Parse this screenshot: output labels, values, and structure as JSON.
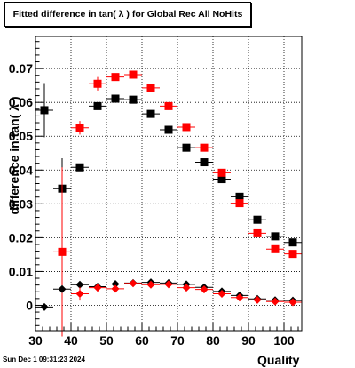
{
  "title": "Fitted difference in tan( λ ) for Global Rec All NoHits",
  "footer": "Sun Dec  1 09:31:23 2024",
  "chart_data": {
    "type": "scatter",
    "title": "Fitted difference in tan( λ ) for Global Rec All NoHits",
    "xlabel": "Quality",
    "ylabel": "difference in tan( λ )",
    "xlim": [
      30,
      105
    ],
    "ylim": [
      -0.0075,
      0.0795
    ],
    "grid": true,
    "x_ticks": [
      30,
      40,
      50,
      60,
      70,
      80,
      90,
      100
    ],
    "y_ticks": [
      0,
      0.01,
      0.02,
      0.03,
      0.04,
      0.05,
      0.06,
      0.07
    ],
    "x_tick_labels": [
      "30",
      "40",
      "50",
      "60",
      "70",
      "80",
      "90",
      "100"
    ],
    "y_tick_labels": [
      "0",
      "0.01",
      "0.02",
      "0.03",
      "0.04",
      "0.05",
      "0.06",
      "0.07"
    ],
    "series": [
      {
        "color": "#000000",
        "marker": "square",
        "points": [
          {
            "x": 32.5,
            "y": 0.0577,
            "yerr": 0.008
          },
          {
            "x": 37.5,
            "y": 0.0345,
            "yerr": 0.009
          },
          {
            "x": 42.5,
            "y": 0.0408,
            "yerr": 0.001
          },
          {
            "x": 47.5,
            "y": 0.0589,
            "yerr": 0.001
          },
          {
            "x": 52.5,
            "y": 0.0611,
            "yerr": 0.001
          },
          {
            "x": 57.5,
            "y": 0.0608,
            "yerr": 0.001
          },
          {
            "x": 62.5,
            "y": 0.0566,
            "yerr": 0.001
          },
          {
            "x": 67.5,
            "y": 0.0519,
            "yerr": 0.001
          },
          {
            "x": 72.5,
            "y": 0.0466,
            "yerr": 0.001
          },
          {
            "x": 77.5,
            "y": 0.0423,
            "yerr": 0.001
          },
          {
            "x": 82.5,
            "y": 0.0373,
            "yerr": 0.001
          },
          {
            "x": 87.5,
            "y": 0.0321,
            "yerr": 0.001
          },
          {
            "x": 92.5,
            "y": 0.0253,
            "yerr": 0.001
          },
          {
            "x": 97.5,
            "y": 0.0204,
            "yerr": 0.001
          },
          {
            "x": 102.5,
            "y": 0.0186,
            "yerr": 0.001
          }
        ]
      },
      {
        "color": "#ff0000",
        "marker": "square",
        "points": [
          {
            "x": 37.5,
            "y": 0.0158,
            "yerr": 0.025
          },
          {
            "x": 42.5,
            "y": 0.0525,
            "yerr": 0.002
          },
          {
            "x": 47.5,
            "y": 0.0655,
            "yerr": 0.002
          },
          {
            "x": 52.5,
            "y": 0.0675,
            "yerr": 0.001
          },
          {
            "x": 57.5,
            "y": 0.0682,
            "yerr": 0.001
          },
          {
            "x": 62.5,
            "y": 0.0643,
            "yerr": 0.001
          },
          {
            "x": 67.5,
            "y": 0.0589,
            "yerr": 0.001
          },
          {
            "x": 72.5,
            "y": 0.0527,
            "yerr": 0.001
          },
          {
            "x": 77.5,
            "y": 0.0466,
            "yerr": 0.001
          },
          {
            "x": 82.5,
            "y": 0.0392,
            "yerr": 0.001
          },
          {
            "x": 87.5,
            "y": 0.0302,
            "yerr": 0.001
          },
          {
            "x": 92.5,
            "y": 0.0213,
            "yerr": 0.001
          },
          {
            "x": 97.5,
            "y": 0.0166,
            "yerr": 0.001
          },
          {
            "x": 102.5,
            "y": 0.0152,
            "yerr": 0.001
          }
        ]
      },
      {
        "color": "#000000",
        "marker": "diamond",
        "points": [
          {
            "x": 32.5,
            "y": -0.0005,
            "yerr": 0.001
          },
          {
            "x": 37.5,
            "y": 0.0048,
            "yerr": 0.001
          },
          {
            "x": 42.5,
            "y": 0.0061,
            "yerr": 0.0008
          },
          {
            "x": 47.5,
            "y": 0.0055,
            "yerr": 0.0005
          },
          {
            "x": 52.5,
            "y": 0.0063,
            "yerr": 0.0004
          },
          {
            "x": 57.5,
            "y": 0.0066,
            "yerr": 0.0004
          },
          {
            "x": 62.5,
            "y": 0.0068,
            "yerr": 0.0004
          },
          {
            "x": 67.5,
            "y": 0.0066,
            "yerr": 0.0004
          },
          {
            "x": 72.5,
            "y": 0.0062,
            "yerr": 0.0004
          },
          {
            "x": 77.5,
            "y": 0.0053,
            "yerr": 0.0004
          },
          {
            "x": 82.5,
            "y": 0.0041,
            "yerr": 0.0004
          },
          {
            "x": 87.5,
            "y": 0.0029,
            "yerr": 0.0004
          },
          {
            "x": 92.5,
            "y": 0.0019,
            "yerr": 0.0004
          },
          {
            "x": 97.5,
            "y": 0.0015,
            "yerr": 0.0004
          },
          {
            "x": 102.5,
            "y": 0.0014,
            "yerr": 0.0004
          }
        ]
      },
      {
        "color": "#ff0000",
        "marker": "diamond",
        "points": [
          {
            "x": 42.5,
            "y": 0.0034,
            "yerr": 0.002
          },
          {
            "x": 47.5,
            "y": 0.0052,
            "yerr": 0.0012
          },
          {
            "x": 52.5,
            "y": 0.0049,
            "yerr": 0.0008
          },
          {
            "x": 57.5,
            "y": 0.0065,
            "yerr": 0.0006
          },
          {
            "x": 62.5,
            "y": 0.0061,
            "yerr": 0.0005
          },
          {
            "x": 67.5,
            "y": 0.0062,
            "yerr": 0.0005
          },
          {
            "x": 72.5,
            "y": 0.0052,
            "yerr": 0.0005
          },
          {
            "x": 77.5,
            "y": 0.0047,
            "yerr": 0.0005
          },
          {
            "x": 82.5,
            "y": 0.0034,
            "yerr": 0.0005
          },
          {
            "x": 87.5,
            "y": 0.0023,
            "yerr": 0.0005
          },
          {
            "x": 92.5,
            "y": 0.0016,
            "yerr": 0.0005
          },
          {
            "x": 97.5,
            "y": 0.0011,
            "yerr": 0.0005
          },
          {
            "x": 102.5,
            "y": 0.0009,
            "yerr": 0.0005
          }
        ]
      }
    ]
  }
}
